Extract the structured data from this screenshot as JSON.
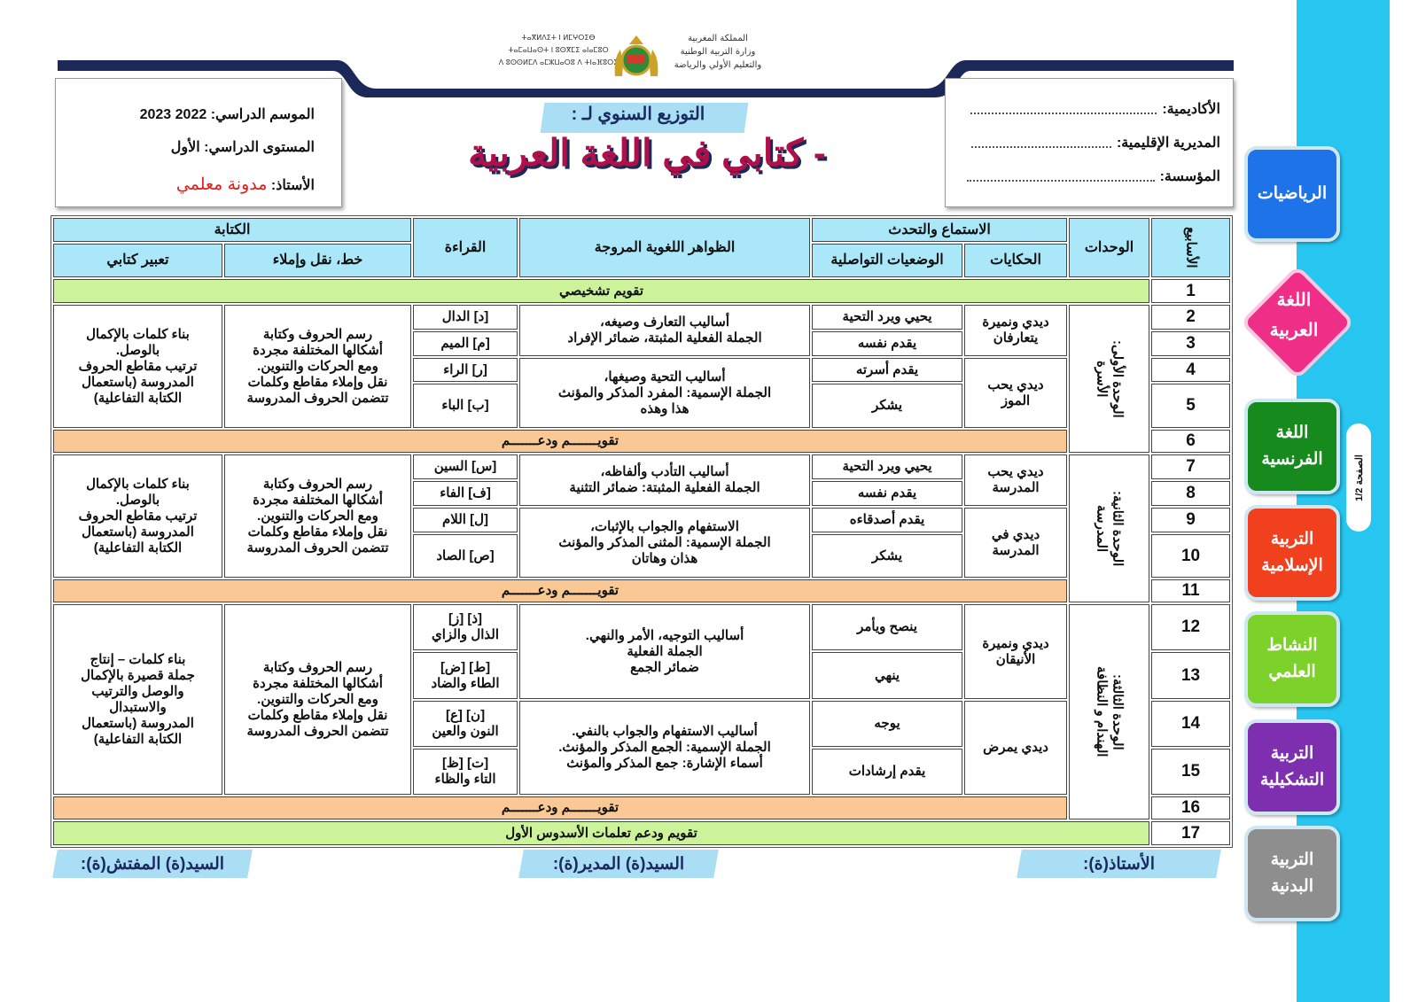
{
  "logo": {
    "arabic": "المملكة المغربية\nوزارة التربية الوطنية\nوالتعليم الأولي والرياضة",
    "tifinagh": "ⵜⴰⴳⵍⴷⵉⵜ ⵏ ⵍⵎⵖⵔⵉⴱ\nⵜⴰⵎⴰⵡⴰⵙⵜ ⵏ ⵓⵙⴳⵎⵉ ⴰⵏⴰⵎⵓⵔ\nⴷ ⵓⵙⵙⵍⵎⴷ ⴰⵎⵣⵡⴰⵔⵓ ⴷ ⵜⵏⴰⴼⵓⵔⵉ"
  },
  "info_left": {
    "season": "الموسم الدراسي: 2022 2023",
    "level": "المستوى الدراسي: الأول",
    "teacher_label": "الأستاذ: ",
    "teacher_value": "مدونة معلمي"
  },
  "info_right": {
    "academy": "الأكاديمية:",
    "directorate": "المديرية الإقليمية:",
    "school": "المؤسسة:"
  },
  "title": {
    "subtitle": "التوزيع السنوي لـ :",
    "main": "- كتابي في اللغة العربية"
  },
  "table": {
    "headers": {
      "weeks": "الأسابيع",
      "units": "الوحدات",
      "listening": "الاستماع والتحدث",
      "stories": "الحكايات",
      "situations": "الوضعيات التواصلية",
      "phenomena": "الظواهر اللغوية المروجة",
      "reading": "القراءة",
      "writing": "الكتابة",
      "handwriting": "خط، نقل وإملاء",
      "expression": "تعبير كتابي"
    },
    "diagnostic": {
      "week": "1",
      "label": "تقويم تشخيصي"
    },
    "units": [
      {
        "name": "الوحدة الأولى:\nالأسرة",
        "weeks": [
          "2",
          "3",
          "4",
          "5"
        ],
        "stories": [
          "ديدي ونميرة\nيتعارفان",
          "ديدي يحب\nالموز"
        ],
        "situations": [
          "يحيي ويرد التحية",
          "يقدم نفسه",
          "يقدم أسرته",
          "يشكر"
        ],
        "phenomena": [
          "أساليب التعارف وصيغه،\nالجملة الفعلية المثبتة، ضمائر الإفراد",
          "أساليب التحية وصيغها،\nالجملة الإسمية: المفرد المذكر والمؤنث\nهذا وهذه"
        ],
        "reading": [
          "[د] الدال",
          "[م] الميم",
          "[ر] الراء",
          "[ب] الباء"
        ],
        "handwriting": "رسم الحروف وكتابة\nأشكالها المختلفة مجردة\nومع الحركات والتنوين.\nنقل وإملاء مقاطع وكلمات\nتتضمن الحروف المدروسة",
        "expression": "بناء كلمات بالإكمال\nبالوصل.\nترتيب مقاطع الحروف\nالمدروسة (باستعمال\nالكتابة التفاعلية)",
        "review": {
          "week": "6",
          "label": "تقويـــــــم ودعـــــــم"
        }
      },
      {
        "name": "الوحدة الثانية:\nالمدرسة",
        "weeks": [
          "7",
          "8",
          "9",
          "10"
        ],
        "stories": [
          "ديدي يحب\nالمدرسة",
          "ديدي في\nالمدرسة"
        ],
        "situations": [
          "يحيي ويرد التحية",
          "يقدم نفسه",
          "يقدم أصدقاءه",
          "يشكر"
        ],
        "phenomena": [
          "أساليب التأدب وألفاظه،\nالجملة الفعلية المثبتة: ضمائر التثنية",
          "الاستفهام والجواب بالإثبات،\nالجملة الإسمية: المثنى المذكر والمؤنث\nهذان وهاتان"
        ],
        "reading": [
          "[س] السين",
          "[ف] الفاء",
          "[ل] اللام",
          "[ص] الصاد"
        ],
        "handwriting": "رسم الحروف وكتابة\nأشكالها المختلفة مجردة\nومع الحركات والتنوين.\nنقل وإملاء مقاطع وكلمات\nتتضمن الحروف المدروسة",
        "expression": "بناء كلمات بالإكمال\nبالوصل.\nترتيب مقاطع الحروف\nالمدروسة (باستعمال\nالكتابة التفاعلية)",
        "review": {
          "week": "11",
          "label": "تقويـــــــم ودعـــــــم"
        }
      },
      {
        "name": "الوحدة الثالثة:\nالهندام و النظافة",
        "weeks": [
          "12",
          "13",
          "14",
          "15"
        ],
        "stories": [
          "ديدي ونميرة\nالأنيقان",
          "ديدي يمرض"
        ],
        "situations": [
          "ينصح ويأمر",
          "ينهي",
          "يوجه",
          "يقدم إرشادات"
        ],
        "phenomena": [
          "أساليب التوجيه، الأمر والنهي.\nالجملة الفعلية\nضمائر الجمع",
          "أساليب الاستفهام والجواب بالنفي.\nالجملة الإسمية: الجمع المذكر والمؤنث.\nأسماء الإشارة: جمع المذكر والمؤنث"
        ],
        "reading": [
          "[ذ] [ز]\nالذال والزاي",
          "[ط] [ض]\nالطاء والضاد",
          "[ن] [ع]\nالنون والعين",
          "[ت] [ظ]\nالتاء والظاء"
        ],
        "handwriting": "رسم الحروف وكتابة\nأشكالها المختلفة مجردة\nومع الحركات والتنوين.\nنقل وإملاء مقاطع وكلمات\nتتضمن الحروف المدروسة",
        "expression": "بناء كلمات – إنتاج\nجملة قصيرة بالإكمال\nوالوصل والترتيب\nوالاستبدال\nالمدروسة (باستعمال\nالكتابة التفاعلية)",
        "review": {
          "week": "16",
          "label": "تقويـــــــم ودعـــــــم"
        }
      }
    ],
    "final": {
      "week": "17",
      "label": "تقويم ودعم تعلمات الأسدوس الأول"
    }
  },
  "signatures": {
    "teacher": "الأستاذ(ة):",
    "director": "السيد(ة) المدير(ة):",
    "inspector": "السيد(ة) المفتش(ة):"
  },
  "sidebar": {
    "page": "الصفحة 1/2",
    "subjects": [
      {
        "label": "الرياضيات",
        "color": "#1e73e8"
      },
      {
        "label": "اللغة\nالعربية",
        "color": "#ee2e87",
        "active": true
      },
      {
        "label": "اللغة\nالفرنسية",
        "color": "#178a1e"
      },
      {
        "label": "التربية\nالإسلامية",
        "color": "#f0401e"
      },
      {
        "label": "النشاط\nالعلمي",
        "color": "#7dd12b"
      },
      {
        "label": "التربية\nالتشكيلية",
        "color": "#7d2fb0"
      },
      {
        "label": "التربية\nالبدنية",
        "color": "#8e8e8e"
      }
    ]
  },
  "colors": {
    "header_cell": "#a9e7f9",
    "diagnostic_row": "#ccf39a",
    "review_row": "#f9c895",
    "title": "#b0104a",
    "navy": "#1c2858",
    "sidebar": "#27c6f1"
  }
}
